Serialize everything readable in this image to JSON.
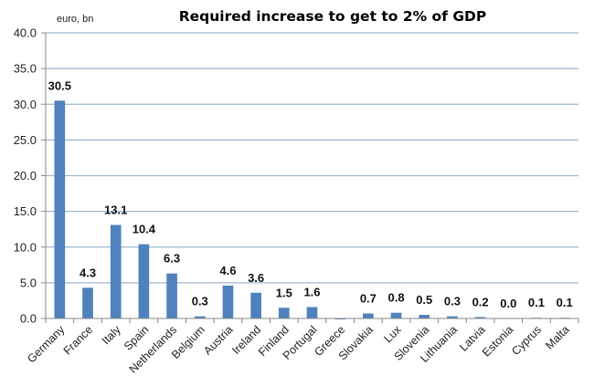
{
  "chart_data": {
    "type": "bar",
    "title": "Required increase to get to 2% of GDP",
    "ylabel": "euro, bn",
    "xlabel": "",
    "ylim": [
      0,
      40
    ],
    "yticks": [
      "0.0",
      "5.0",
      "10.0",
      "15.0",
      "20.0",
      "25.0",
      "30.0",
      "35.0",
      "40.0"
    ],
    "grid": true,
    "legend": "none",
    "color": "#4f81bd",
    "categories": [
      "Germany",
      "France",
      "Italy",
      "Spain",
      "Netherlands",
      "Belgium",
      "Austria",
      "Ireland",
      "Finland",
      "Portugal",
      "Greece",
      "Slovakia",
      "Lux",
      "Slovenia",
      "Lithuania",
      "Latvia",
      "Estonia",
      "Cyprus",
      "Malta"
    ],
    "values": [
      30.5,
      4.3,
      13.1,
      10.4,
      6.3,
      0.3,
      4.6,
      3.6,
      1.5,
      1.6,
      -0.1,
      0.7,
      0.8,
      0.5,
      0.3,
      0.2,
      0.0,
      0.1,
      0.1
    ],
    "data_labels": [
      "30.5",
      "4.3",
      "13.1",
      "10.4",
      "6.3",
      "0.3",
      "4.6",
      "3.6",
      "1.5",
      "1.6",
      "",
      "0.7",
      "0.8",
      "0.5",
      "0.3",
      "0.2",
      "0.0",
      "0.1",
      "0.1"
    ]
  }
}
